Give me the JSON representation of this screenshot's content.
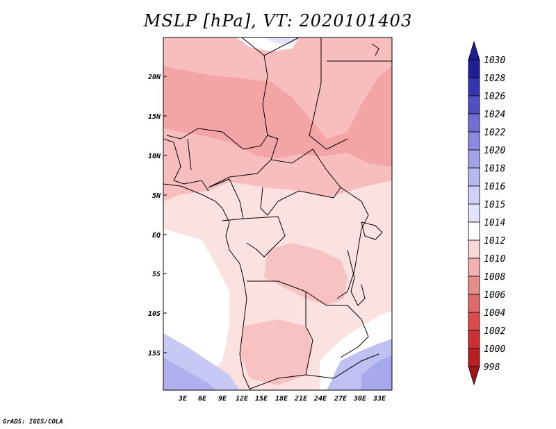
{
  "title": "MSLP [hPa], VT: 2020101403",
  "credit": "GrADS: IGES/COLA",
  "lat_labels": [
    "20N",
    "15N",
    "10N",
    "5N",
    "EQ",
    "5S",
    "10S",
    "15S"
  ],
  "lon_labels": [
    "3E",
    "6E",
    "9E",
    "12E",
    "15E",
    "18E",
    "21E",
    "24E",
    "27E",
    "30E",
    "33E"
  ],
  "colorbar": {
    "labels": [
      "998",
      "1000",
      "1002",
      "1004",
      "1006",
      "1008",
      "1010",
      "1012",
      "1014",
      "1015",
      "1016",
      "1018",
      "1020",
      "1022",
      "1024",
      "1026",
      "1028",
      "1030"
    ],
    "colors": [
      "#a01515",
      "#b82020",
      "#cc3030",
      "#dc4a4a",
      "#e06a6a",
      "#e88c8c",
      "#f2b0b0",
      "#fad6d6",
      "#ffffff",
      "#e2e2fb",
      "#cfcff8",
      "#b8b8f2",
      "#a2a2ea",
      "#8a8ae0",
      "#6e6ed4",
      "#5050c6",
      "#3535b2",
      "#1e1e96"
    ]
  }
}
